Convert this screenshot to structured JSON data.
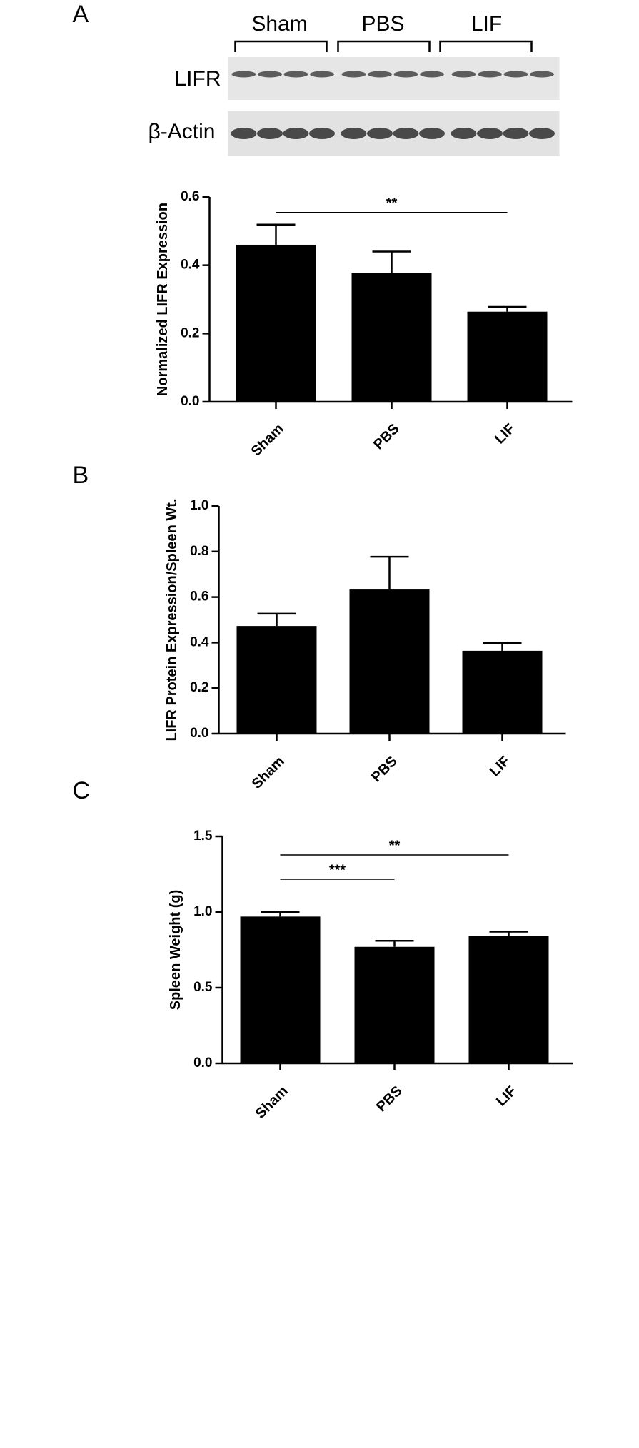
{
  "blot": {
    "groups": [
      "Sham",
      "PBS",
      "LIF"
    ],
    "rows": [
      "LIFR",
      "β-Actin"
    ]
  },
  "chart_data": [
    {
      "type": "bar",
      "panel": "A",
      "ylabel": "Normalized LIFR Expression",
      "categories": [
        "Sham",
        "PBS",
        "LIF"
      ],
      "values": [
        0.46,
        0.377,
        0.264
      ],
      "errors": [
        0.059,
        0.063,
        0.014
      ],
      "color": "#000000",
      "ylim": [
        0,
        0.6
      ],
      "yticks": [
        {
          "value": 0,
          "label": "0.0"
        },
        0.2,
        0.4,
        0.6
      ],
      "annotations": [
        {
          "text": "**",
          "from": "Sham",
          "to": "LIF"
        }
      ]
    },
    {
      "type": "bar",
      "panel": "B",
      "ylabel": "LIFR Protein Expression/Spleen Wt.",
      "categories": [
        "Sham",
        "PBS",
        "LIF"
      ],
      "values": [
        0.473,
        0.633,
        0.364
      ],
      "errors": [
        0.054,
        0.144,
        0.034
      ],
      "color": "#000000",
      "ylim": [
        0,
        1
      ],
      "yticks": [
        {
          "value": 0,
          "label": "0.0"
        },
        0.2,
        0.4,
        0.6,
        0.8,
        {
          "value": 1,
          "label": "1.0"
        }
      ]
    },
    {
      "type": "bar",
      "panel": "C",
      "ylabel": "Spleen Weight (g)",
      "categories": [
        "Sham",
        "PBS",
        "LIF"
      ],
      "values": [
        0.97,
        0.77,
        0.84
      ],
      "errors": [
        0.03,
        0.04,
        0.03
      ],
      "color": "#000000",
      "ylim": [
        0,
        1.5
      ],
      "yticks": [
        {
          "value": 0,
          "label": "0.0"
        },
        0.5,
        {
          "value": 1,
          "label": "1.0"
        },
        1.5
      ],
      "annotations": [
        {
          "text": "***",
          "from": "Sham",
          "to": "PBS"
        },
        {
          "text": "**",
          "from": "Sham",
          "to": "LIF"
        }
      ]
    }
  ]
}
